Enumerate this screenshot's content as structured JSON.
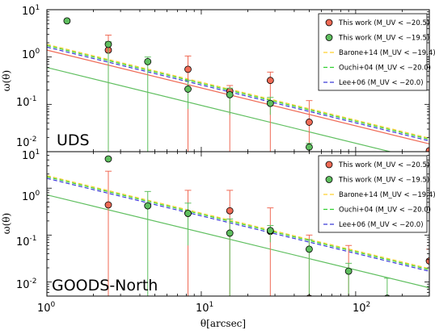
{
  "chart_data": {
    "type": "scatter",
    "xscale": "log",
    "yscale": "log",
    "xlim": [
      1,
      300
    ],
    "xlabel": "θ[arcsec]",
    "x_ticklabels": [
      "10^0",
      "10^1",
      "10^2"
    ],
    "legend_position": "top-right",
    "panels": [
      {
        "label": "UDS",
        "ylabel": "ω(θ)",
        "ylim": [
          0.01,
          10
        ],
        "y_ticklabels": [
          "10^1",
          "10^0",
          "10^-1",
          "10^-2",
          "10^1"
        ],
        "series": [
          {
            "name": "This work (M_UV < −20.5)",
            "color": "#f06a55",
            "x": [
              2.5,
              8.2,
              15.3,
              28,
              50,
              300
            ],
            "y": [
              1.4,
              0.55,
              0.19,
              0.32,
              0.042,
              0.0105
            ],
            "yerr_high": [
              2.9,
              1.05,
              0.25,
              0.48,
              0.12,
              0.0105
            ],
            "yerr_low": [
              0.01,
              0.01,
              0.01,
              0.01,
              0.01,
              0.01
            ]
          },
          {
            "name": "This work (M_UV < −19.5)",
            "color": "#5fbf5f",
            "x": [
              1.35,
              2.5,
              4.5,
              8.2,
              15.3,
              28,
              50
            ],
            "y": [
              5.8,
              1.85,
              0.8,
              0.21,
              0.16,
              0.105,
              0.0125
            ],
            "yerr_high": [
              5.8,
              2.1,
              1.0,
              0.32,
              0.22,
              0.14,
              0.015
            ],
            "yerr_low": [
              5.8,
              0.01,
              0.01,
              0.08,
              0.06,
              0.06,
              0.01
            ]
          },
          {
            "name": "Barone+14 (M_UV < −19.4)",
            "color": "#ffd02f",
            "style": "dashed",
            "model": {
              "A": 1.85,
              "slope": -0.8
            }
          },
          {
            "name": "Ouchi+04 (M_UV < −20.0)",
            "color": "#30d030",
            "style": "dashed",
            "model": {
              "A": 1.75,
              "slope": -0.8
            }
          },
          {
            "name": "Lee+06 (M_UV < −20.0)",
            "color": "#3a3ad8",
            "style": "dashed",
            "model": {
              "A": 1.62,
              "slope": -0.8
            }
          }
        ],
        "fit_lines": [
          {
            "color": "#f06a55",
            "A": 1.4,
            "slope": -0.8
          },
          {
            "color": "#5fbf5f",
            "A": 0.6,
            "slope": -0.8
          }
        ]
      },
      {
        "label": "GOODS-North",
        "ylabel": "ω(θ)",
        "ylim": [
          0.005,
          6
        ],
        "y_ticklabels": [
          "10^0",
          "10^-1",
          "10^-2"
        ],
        "series": [
          {
            "name": "This work (M_UV < −20.5)",
            "color": "#f06a55",
            "x": [
              2.5,
              8.2,
              15.3,
              28,
              50,
              90,
              300
            ],
            "y": [
              0.44,
              0.29,
              0.33,
              0.12,
              0.0045,
              0.003,
              0.028
            ],
            "yerr_high": [
              2.3,
              0.9,
              0.9,
              0.38,
              0.1,
              0.06,
              0.05
            ],
            "yerr_low": [
              0.005,
              0.005,
              0.005,
              0.005,
              0.005,
              0.005,
              0.005
            ]
          },
          {
            "name": "This work (M_UV < −19.5)",
            "color": "#5fbf5f",
            "x": [
              2.5,
              4.5,
              8.2,
              15.3,
              28,
              50,
              90,
              160
            ],
            "y": [
              4.2,
              0.42,
              0.29,
              0.11,
              0.125,
              0.05,
              0.017,
              0.0045
            ],
            "yerr_high": [
              4.2,
              0.85,
              0.48,
              0.22,
              0.16,
              0.08,
              0.025,
              0.012
            ],
            "yerr_low": [
              4.2,
              0.005,
              0.06,
              0.005,
              0.07,
              0.005,
              0.005,
              0.005
            ]
          },
          {
            "name": "Barone+14 (M_UV < −19.4)",
            "color": "#ffd02f",
            "style": "dashed",
            "model": {
              "A": 1.85,
              "slope": -0.8
            }
          },
          {
            "name": "Ouchi+04 (M_UV < −20.0)",
            "color": "#30d030",
            "style": "dashed",
            "model": {
              "A": 1.75,
              "slope": -0.8
            }
          },
          {
            "name": "Lee+06 (M_UV < −20.0)",
            "color": "#3a3ad8",
            "style": "dashed",
            "model": {
              "A": 1.62,
              "slope": -0.8
            }
          }
        ],
        "fit_lines": [
          {
            "color": "#5fbf5f",
            "A": 0.72,
            "slope": -0.8
          }
        ]
      }
    ]
  }
}
